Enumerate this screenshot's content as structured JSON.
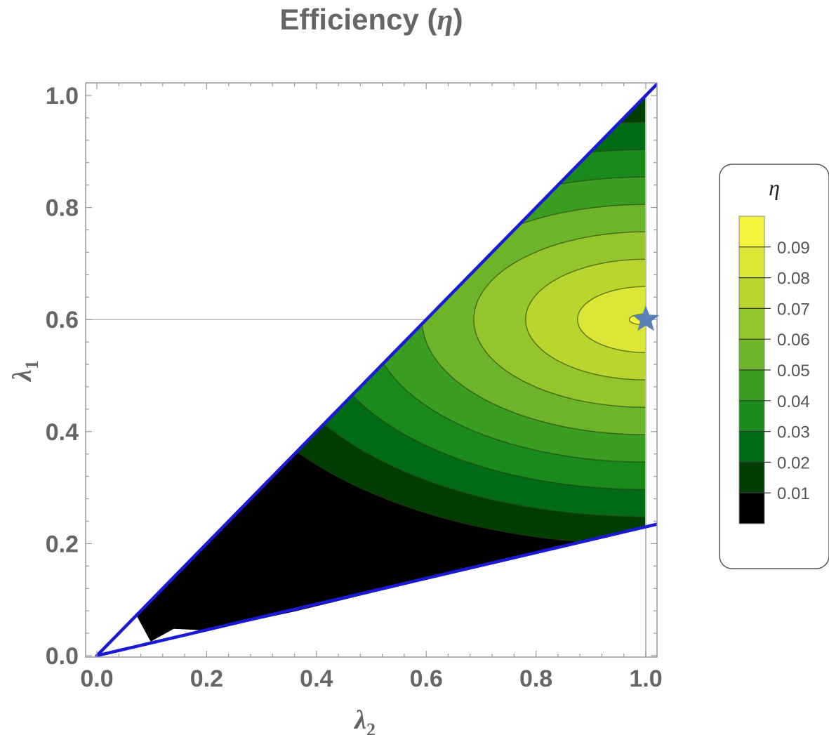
{
  "chart_data": {
    "type": "contour",
    "title": "Efficiency",
    "title_symbol": "η",
    "xlabel": "λ",
    "xlabel_sub": "2",
    "ylabel": "λ",
    "ylabel_sub": "1",
    "xlim": [
      0.0,
      1.0
    ],
    "ylim": [
      0.0,
      1.0
    ],
    "x_ticks": [
      "0.0",
      "0.2",
      "0.4",
      "0.6",
      "0.8",
      "1.0"
    ],
    "y_ticks": [
      "0.0",
      "0.2",
      "0.4",
      "0.6",
      "0.8",
      "1.0"
    ],
    "grid": false,
    "boundary_lines": [
      {
        "x": [
          0.0,
          1.0
        ],
        "y": [
          0.0,
          1.0
        ],
        "color": "#1a1ad6"
      },
      {
        "x": [
          0.0,
          1.0
        ],
        "y": [
          0.0,
          0.23
        ],
        "color": "#1a1ad6"
      }
    ],
    "reference_lines": {
      "x": 1.0,
      "y": 0.6
    },
    "optimum_marker": {
      "x": 1.0,
      "y": 0.6,
      "shape": "star",
      "color": "#5b7fb8"
    },
    "legend": {
      "title": "η",
      "position": "right",
      "levels": [
        "0.09",
        "0.08",
        "0.07",
        "0.06",
        "0.05",
        "0.04",
        "0.03",
        "0.02",
        "0.01"
      ]
    },
    "color_scale": [
      "#000000",
      "#003d00",
      "#006a14",
      "#1b8a1c",
      "#3a9e22",
      "#6cb42a",
      "#95c52d",
      "#b9d62f",
      "#dbe636",
      "#f5f53c"
    ]
  }
}
